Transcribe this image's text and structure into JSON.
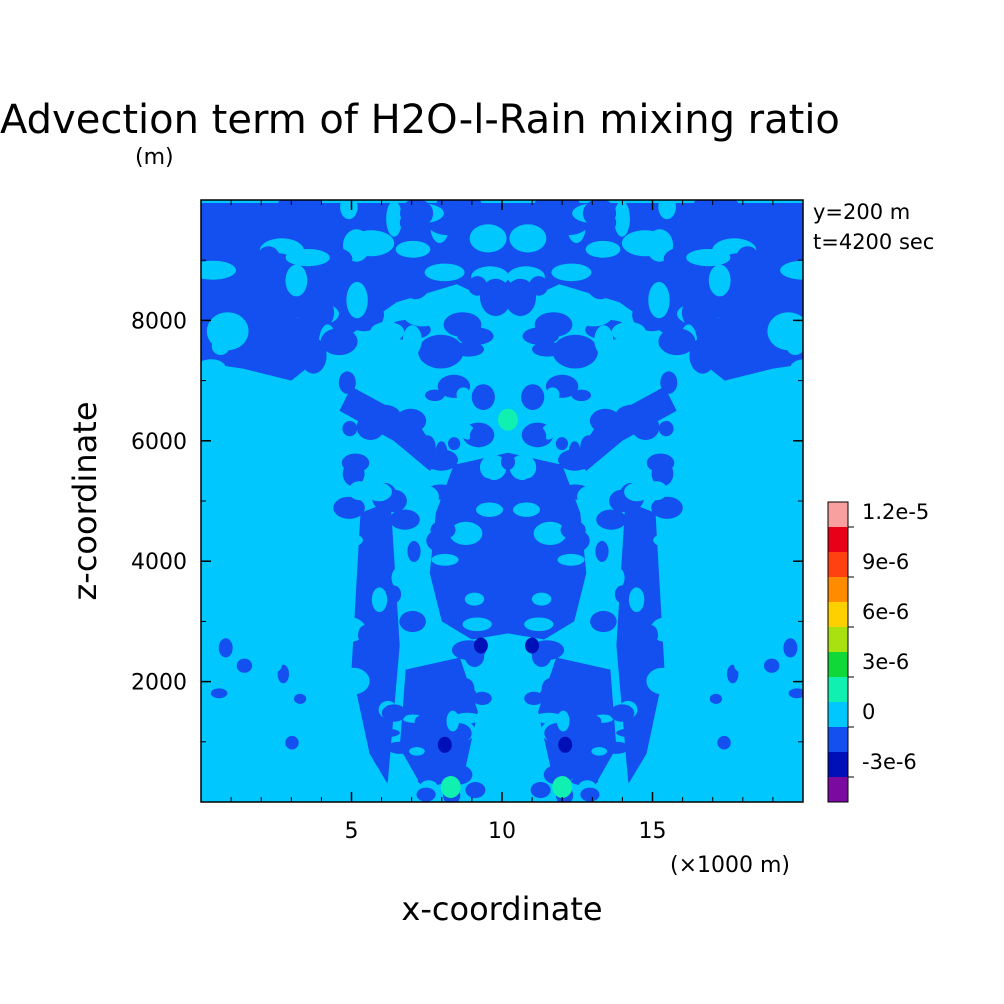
{
  "chart_data": {
    "type": "heatmap",
    "title": "Advection term of H2O-l-Rain mixing ratio",
    "title_unit": "(m)",
    "xlabel": "x-coordinate",
    "ylabel": "z-coordinate",
    "x_unit": "(×1000 m)",
    "xlim": [
      0,
      20
    ],
    "ylim": [
      0,
      10000
    ],
    "x_ticks": [
      5,
      10,
      15
    ],
    "x_tick_labels": [
      "5",
      "10",
      "15"
    ],
    "y_ticks": [
      2000,
      4000,
      6000,
      8000
    ],
    "y_tick_labels": [
      "2000",
      "4000",
      "6000",
      "8000"
    ],
    "annotations": [
      "y=200 m",
      "t=4200 sec"
    ],
    "colorbar": {
      "labels": [
        "1.2e-5",
        "9e-6",
        "6e-6",
        "3e-6",
        "0",
        "-3e-6"
      ],
      "label_levels": [
        12,
        9,
        6,
        3,
        0,
        -3
      ],
      "levels": [
        -4.5,
        -3,
        -1.5,
        0,
        1.5,
        3,
        4.5,
        6,
        7.5,
        9,
        10.5,
        12,
        13.5
      ],
      "colors": [
        "#7a0aa0",
        "#0010b8",
        "#1450f0",
        "#00c8ff",
        "#10f0b0",
        "#10d838",
        "#a8e010",
        "#ffd000",
        "#ff8c00",
        "#ff4010",
        "#e80018",
        "#f8a0a0"
      ]
    },
    "background_level": "0 to 1.5e-6",
    "background_color": "#00c8ff",
    "negative_color": "#1450f0",
    "features": [
      {
        "kind": "negative_region",
        "note": "central column",
        "x": [
          7.6,
          12.8
        ],
        "z": [
          2700,
          5800
        ]
      },
      {
        "kind": "negative_region",
        "note": "upper outflow",
        "x": [
          0,
          20
        ],
        "z": [
          7000,
          9800
        ]
      },
      {
        "kind": "local_max",
        "x": 10.2,
        "z": 6350,
        "level": "1.5e-6 to 3e-6"
      },
      {
        "kind": "local_min",
        "x": 10.2,
        "z": 5650,
        "level": "-1.5e-6 to 0"
      },
      {
        "kind": "local_max",
        "x": 8.3,
        "z": 250,
        "level": "1.5e-6 to 3e-6"
      },
      {
        "kind": "local_max",
        "x": 12.0,
        "z": 250,
        "level": "1.5e-6 to 3e-6"
      },
      {
        "kind": "local_min",
        "x": 8.1,
        "z": 950,
        "level": "-3e-6 to -1.5e-6"
      },
      {
        "kind": "local_min",
        "x": 12.1,
        "z": 950,
        "level": "-3e-6 to -1.5e-6"
      },
      {
        "kind": "local_min",
        "x": 9.3,
        "z": 2600,
        "level": "-3e-6 to -1.5e-6"
      },
      {
        "kind": "local_min",
        "x": 11.0,
        "z": 2600,
        "level": "-3e-6 to -1.5e-6"
      }
    ]
  }
}
